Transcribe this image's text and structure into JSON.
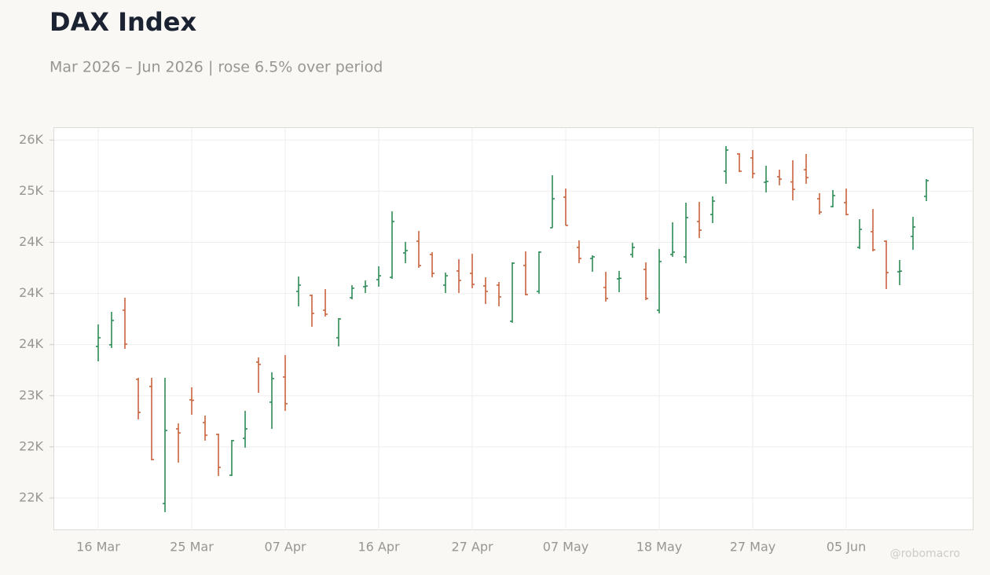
{
  "chart_data": {
    "type": "ohlc",
    "title": "DAX Index",
    "subtitle": "Mar 2026 – Jun 2026 | rose 6.5% over period",
    "watermark": "@robomacro",
    "up_color": "#2e8b57",
    "down_color": "#c8643c",
    "grid": true,
    "categories": [
      "16 Mar",
      null,
      null,
      null,
      null,
      null,
      null,
      "25 Mar",
      null,
      null,
      null,
      null,
      null,
      null,
      "07 Apr",
      null,
      null,
      null,
      null,
      null,
      null,
      "16 Apr",
      null,
      null,
      null,
      null,
      null,
      null,
      "27 Apr",
      null,
      null,
      null,
      null,
      null,
      null,
      "07 May",
      null,
      null,
      null,
      null,
      null,
      null,
      "18 May",
      null,
      null,
      null,
      null,
      null,
      null,
      "27 May",
      null,
      null,
      null,
      null,
      null,
      null,
      "05 Jun",
      null,
      null,
      null,
      null,
      null,
      null
    ],
    "open": [
      23482,
      23498,
      23836,
      23160,
      23091,
      21946,
      22676,
      22960,
      22737,
      22622,
      22223,
      22584,
      23329,
      22937,
      23183,
      24020,
      23981,
      23836,
      23567,
      23958,
      24066,
      24135,
      24158,
      24396,
      24511,
      24381,
      24081,
      24220,
      24196,
      24074,
      24081,
      23728,
      24273,
      24020,
      24642,
      24941,
      24450,
      24342,
      24058,
      24143,
      24381,
      24235,
      23836,
      24381,
      24358,
      24703,
      24772,
      25195,
      25364,
      25325,
      25087,
      25141,
      25090,
      25210,
      24926,
      24849,
      24888,
      24450,
      24604,
      24511,
      24212,
      24557,
      24949
    ],
    "high": [
      23697,
      23820,
      23958,
      23175,
      23175,
      23175,
      22730,
      23083,
      22806,
      22630,
      22568,
      22852,
      23375,
      23229,
      23398,
      24166,
      23989,
      24043,
      23759,
      24081,
      24127,
      24266,
      24803,
      24504,
      24611,
      24404,
      24204,
      24335,
      24388,
      24158,
      24112,
      24304,
      24412,
      24412,
      25156,
      25026,
      24519,
      24373,
      24212,
      24220,
      24496,
      24304,
      24435,
      24696,
      24888,
      24895,
      24949,
      25441,
      25372,
      25402,
      25249,
      25210,
      25302,
      25364,
      24980,
      25011,
      25026,
      24726,
      24826,
      24519,
      24327,
      24749,
      25118
    ],
    "low": [
      23336,
      23467,
      23459,
      22768,
      22369,
      21862,
      22346,
      22814,
      22561,
      22215,
      22215,
      22492,
      23029,
      22676,
      22852,
      23874,
      23674,
      23774,
      23482,
      23943,
      24004,
      24066,
      24143,
      24296,
      24250,
      24158,
      24004,
      24004,
      24051,
      23897,
      23874,
      23713,
      23981,
      23997,
      24642,
      24665,
      24296,
      24212,
      23920,
      24012,
      24350,
      23935,
      23805,
      24358,
      24296,
      24542,
      24688,
      25072,
      25187,
      25126,
      24988,
      25057,
      24911,
      25072,
      24772,
      24842,
      24765,
      24435,
      24412,
      24043,
      24081,
      24427,
      24903
    ],
    "close": [
      23567,
      23736,
      23505,
      22837,
      22376,
      22660,
      22637,
      22955,
      22614,
      22300,
      22561,
      22676,
      23306,
      23167,
      22922,
      24081,
      23805,
      23797,
      23751,
      24051,
      24072,
      24173,
      24703,
      24419,
      24273,
      24196,
      24173,
      24127,
      24089,
      24020,
      23966,
      24296,
      23989,
      24404,
      24926,
      24665,
      24342,
      24358,
      23951,
      24148,
      24450,
      23951,
      24312,
      24404,
      24742,
      24619,
      24903,
      25402,
      25195,
      25172,
      25095,
      25118,
      25018,
      25133,
      24796,
      24957,
      24772,
      24627,
      24427,
      24204,
      24218,
      24650,
      25103
    ],
    "ylim": [
      21685,
      25625
    ],
    "yticks": [
      {
        "value": 22000,
        "label": "22K"
      },
      {
        "value": 22500,
        "label": "22K"
      },
      {
        "value": 23000,
        "label": "23K"
      },
      {
        "value": 23500,
        "label": "24K"
      },
      {
        "value": 24000,
        "label": "24K"
      },
      {
        "value": 24500,
        "label": "24K"
      },
      {
        "value": 25000,
        "label": "25K"
      },
      {
        "value": 25500,
        "label": "26K"
      }
    ]
  }
}
